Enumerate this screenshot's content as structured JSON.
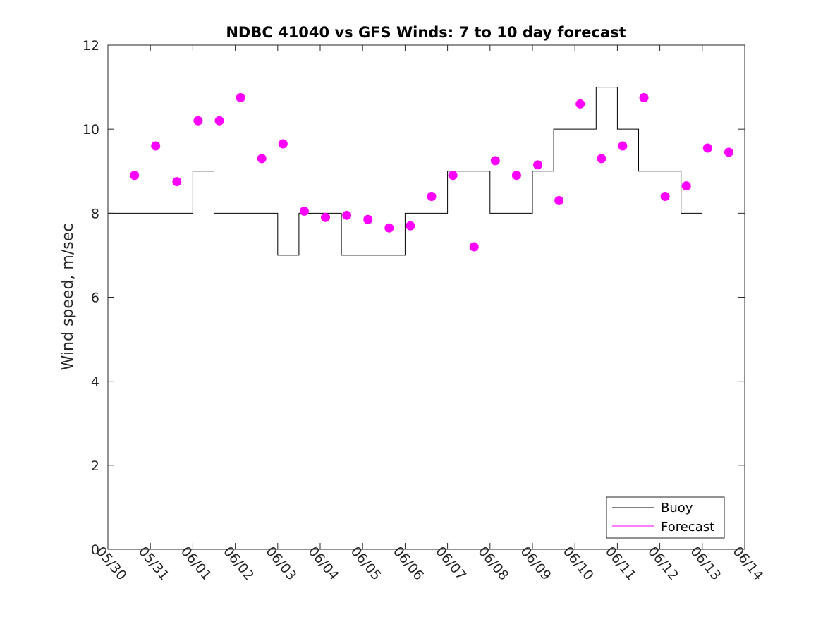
{
  "chart_data": {
    "type": "line",
    "title": "NDBC 41040 vs GFS Winds: 7 to 10 day forecast",
    "xlabel": "",
    "ylabel": "Wind speed, m/sec",
    "xlim": [
      "05/30",
      "06/14"
    ],
    "ylim": [
      0,
      12
    ],
    "x_tick_labels": [
      "05/30",
      "05/31",
      "06/01",
      "06/02",
      "06/03",
      "06/04",
      "06/05",
      "06/06",
      "06/07",
      "06/08",
      "06/09",
      "06/10",
      "06/11",
      "06/12",
      "06/13",
      "06/14"
    ],
    "y_ticks": [
      0,
      2,
      4,
      6,
      8,
      10,
      12
    ],
    "grid": false,
    "legend": {
      "placement": "bottom-right",
      "entries": [
        "Buoy",
        "Forecast"
      ]
    },
    "colors": {
      "buoy": "#000000",
      "forecast": "#ff00ff"
    },
    "series": [
      {
        "name": "Buoy",
        "style": "line",
        "x_day_offsets_from_05_30": [
          0.0,
          0.5,
          1.0,
          1.5,
          2.0,
          2.5,
          3.0,
          3.5,
          4.0,
          4.5,
          5.0,
          5.5,
          6.0,
          6.5,
          7.0,
          7.5,
          8.0,
          8.5,
          9.0,
          9.5,
          10.0,
          10.5,
          11.0,
          11.5,
          12.0,
          12.5,
          13.0,
          13.5,
          14.0
        ],
        "x": [
          "05/30 00:00",
          "05/30 12:00",
          "05/31 00:00",
          "05/31 12:00",
          "06/01 00:00",
          "06/01 12:00",
          "06/02 00:00",
          "06/02 12:00",
          "06/03 00:00",
          "06/03 12:00",
          "06/04 00:00",
          "06/04 12:00",
          "06/05 00:00",
          "06/05 12:00",
          "06/06 00:00",
          "06/06 12:00",
          "06/07 00:00",
          "06/07 12:00",
          "06/08 00:00",
          "06/08 12:00",
          "06/09 00:00",
          "06/09 12:00",
          "06/10 00:00",
          "06/10 12:00",
          "06/11 00:00",
          "06/11 12:00",
          "06/12 00:00",
          "06/12 12:00",
          "06/13 00:00"
        ],
        "values": [
          8,
          8,
          8,
          8,
          9,
          8,
          8,
          8,
          7,
          8,
          8,
          7,
          7,
          7,
          8,
          8,
          9,
          9,
          8,
          8,
          9,
          10,
          10,
          11,
          10,
          9,
          9,
          8,
          8
        ]
      },
      {
        "name": "Forecast",
        "style": "markers",
        "x": [
          "05/30 15:00",
          "05/31 03:00",
          "05/31 15:00",
          "06/01 03:00",
          "06/01 15:00",
          "06/02 03:00",
          "06/02 15:00",
          "06/03 03:00",
          "06/03 15:00",
          "06/04 03:00",
          "06/04 15:00",
          "06/05 03:00",
          "06/05 15:00",
          "06/06 03:00",
          "06/06 15:00",
          "06/07 03:00",
          "06/07 15:00",
          "06/08 03:00",
          "06/08 15:00",
          "06/09 03:00",
          "06/09 15:00",
          "06/10 03:00",
          "06/10 15:00",
          "06/11 03:00",
          "06/11 15:00",
          "06/12 03:00",
          "06/12 15:00",
          "06/13 03:00",
          "06/13 15:00"
        ],
        "values": [
          8.9,
          9.6,
          8.75,
          10.2,
          10.2,
          10.75,
          9.3,
          9.65,
          8.05,
          7.9,
          7.95,
          7.85,
          7.65,
          7.7,
          8.4,
          8.9,
          7.2,
          9.25,
          8.9,
          9.15,
          8.3,
          10.6,
          9.3,
          9.6,
          10.75,
          8.4,
          8.65,
          9.55,
          9.45
        ]
      }
    ]
  }
}
